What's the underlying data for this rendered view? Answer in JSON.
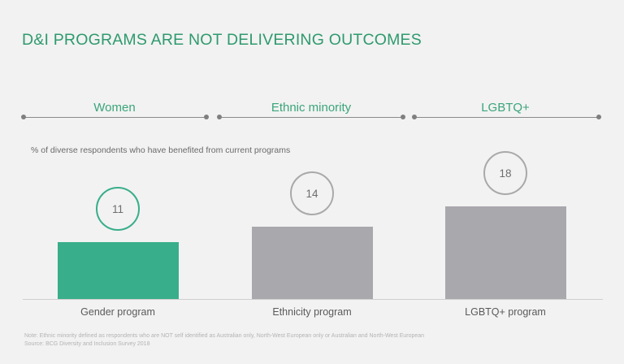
{
  "chart_data": {
    "type": "bar",
    "title": "D&I PROGRAMS ARE NOT DELIVERING OUTCOMES",
    "subtitle": "% of diverse respondents who have benefited from current programs",
    "groups": [
      "Women",
      "Ethnic minority",
      "LGBTQ+"
    ],
    "categories": [
      "Gender program",
      "Ethnicity program",
      "LGBTQ+ program"
    ],
    "values": [
      11,
      14,
      18
    ],
    "highlight_index": 0,
    "ylim": [
      0,
      20
    ],
    "colors": {
      "highlight": "#38ae8a",
      "default": "#a9a8ad"
    }
  },
  "footer": {
    "note": "Note: Ethnic minority defined as respondents who are NOT self identified as Australian only, North-West European only or Australian and North-West European",
    "source": "Source: BCG Diversity and Inclusion Survey 2018"
  }
}
